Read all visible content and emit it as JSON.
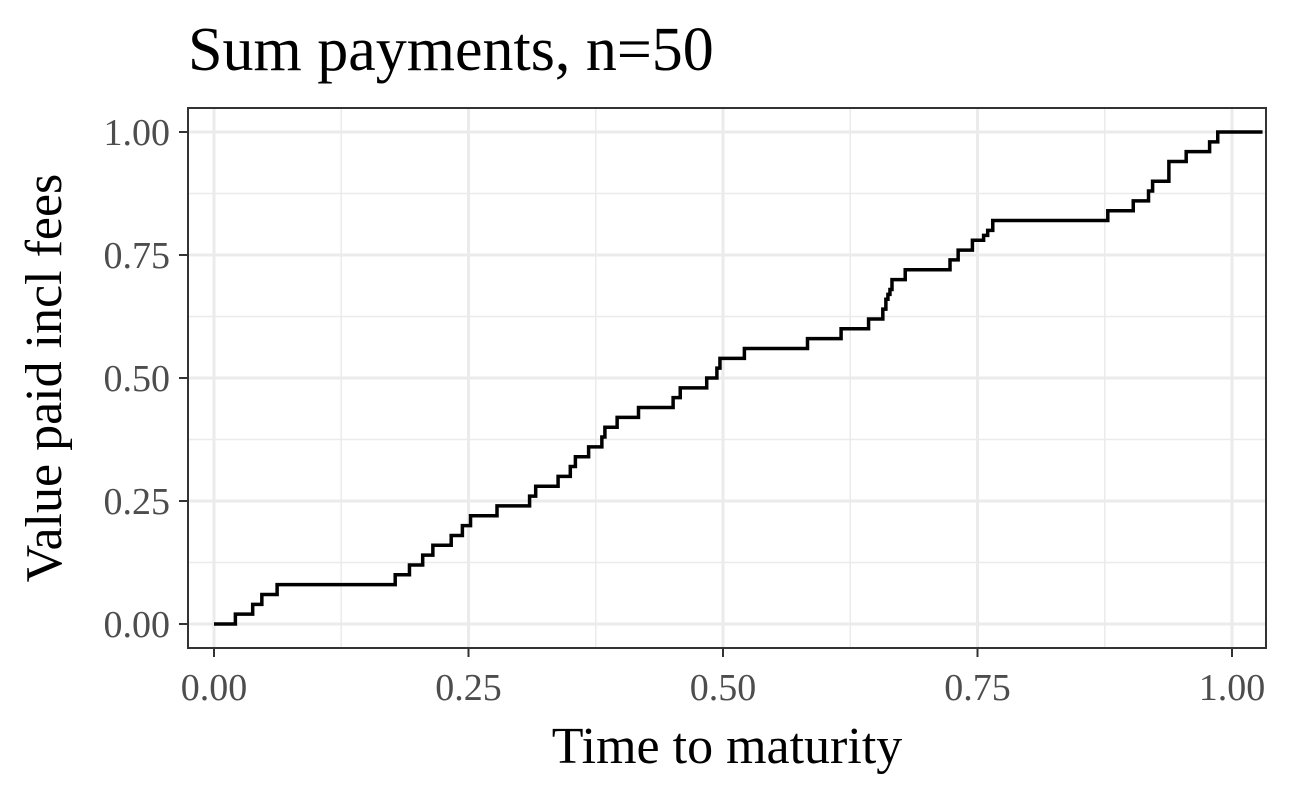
{
  "chart_data": {
    "type": "line",
    "title": "Sum payments, n=50",
    "xlabel": "Time to maturity",
    "ylabel": "Value paid incl fees",
    "xlim": [
      0,
      1
    ],
    "ylim": [
      0,
      1
    ],
    "x_ticks": [
      "0.00",
      "0.25",
      "0.50",
      "0.75",
      "1.00"
    ],
    "y_ticks": [
      "0.00",
      "0.25",
      "0.50",
      "0.75",
      "1.00"
    ],
    "grid": true,
    "step": true,
    "colors": {
      "line": "#000000",
      "grid": "#ebebeb",
      "border": "#333333"
    },
    "series": [
      {
        "x": [
          0.0,
          0.021,
          0.038,
          0.047,
          0.062,
          0.178,
          0.192,
          0.205,
          0.215,
          0.233,
          0.244,
          0.252,
          0.278,
          0.31,
          0.316,
          0.338,
          0.35,
          0.355,
          0.368,
          0.381,
          0.384,
          0.389,
          0.396,
          0.417,
          0.451,
          0.454,
          0.458,
          0.484,
          0.494,
          0.497,
          0.521,
          0.583,
          0.616,
          0.643,
          0.657,
          0.66,
          0.662,
          0.664,
          0.666,
          0.679,
          0.723,
          0.731,
          0.745,
          0.756,
          0.76,
          0.765,
          0.878,
          0.903,
          0.918,
          0.922,
          0.927,
          0.938,
          0.955,
          0.978,
          0.986,
          1.03
        ],
        "y": [
          0.0,
          0.02,
          0.04,
          0.06,
          0.08,
          0.1,
          0.12,
          0.14,
          0.16,
          0.18,
          0.2,
          0.22,
          0.24,
          0.26,
          0.28,
          0.3,
          0.32,
          0.34,
          0.36,
          0.38,
          0.4,
          0.4,
          0.42,
          0.44,
          0.46,
          0.46,
          0.48,
          0.5,
          0.52,
          0.54,
          0.56,
          0.58,
          0.6,
          0.62,
          0.64,
          0.66,
          0.67,
          0.68,
          0.7,
          0.72,
          0.74,
          0.76,
          0.78,
          0.79,
          0.8,
          0.82,
          0.84,
          0.86,
          0.88,
          0.9,
          0.9,
          0.94,
          0.96,
          0.98,
          1.0,
          1.0
        ]
      }
    ]
  }
}
